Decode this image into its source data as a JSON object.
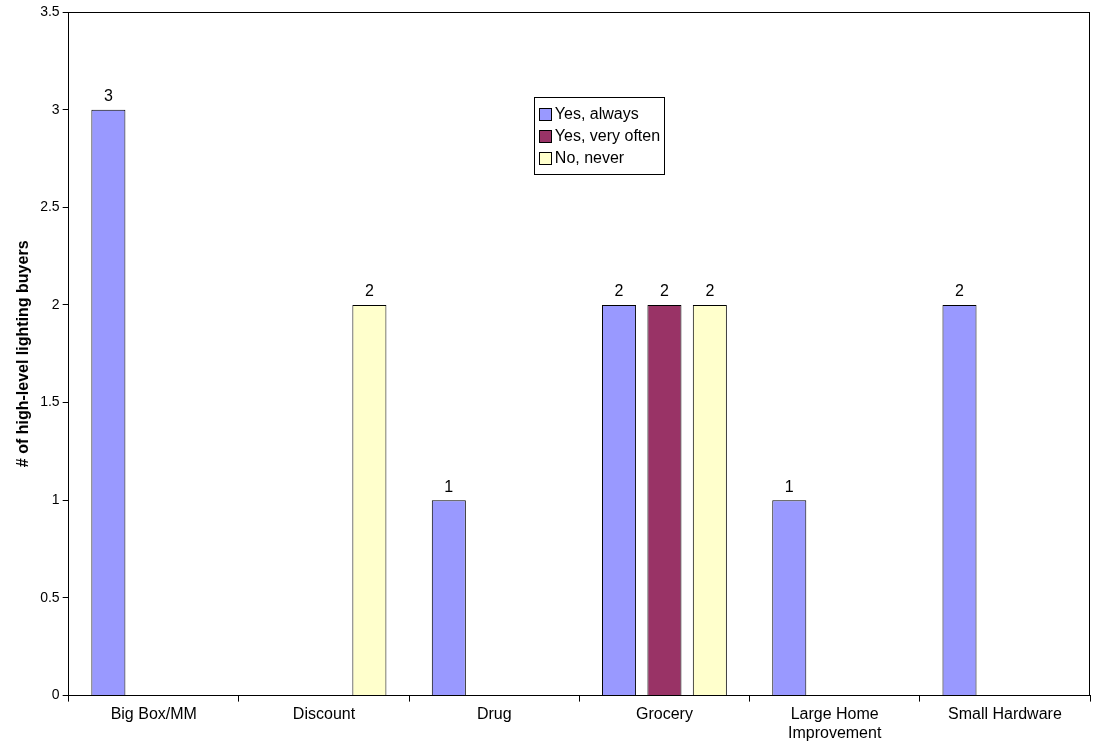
{
  "chart_data": {
    "type": "bar",
    "ylabel": "# of high-level lighting buyers",
    "categories": [
      "Big Box/MM",
      "Discount",
      "Drug",
      "Grocery",
      "Large Home Improvement",
      "Small Hardware"
    ],
    "series": [
      {
        "name": "Yes, always",
        "color": "#9999ff",
        "values": [
          3,
          null,
          1,
          2,
          1,
          2
        ]
      },
      {
        "name": "Yes, very often",
        "color": "#993366",
        "values": [
          null,
          null,
          null,
          2,
          null,
          null
        ]
      },
      {
        "name": "No, never",
        "color": "#ffffcc",
        "values": [
          null,
          2,
          null,
          2,
          null,
          null
        ]
      }
    ],
    "ylim": [
      0,
      3.5
    ],
    "yticks": [
      0,
      0.5,
      1,
      1.5,
      2,
      2.5,
      3,
      3.5
    ],
    "grid": false,
    "legend": "top",
    "data_labels": true
  }
}
